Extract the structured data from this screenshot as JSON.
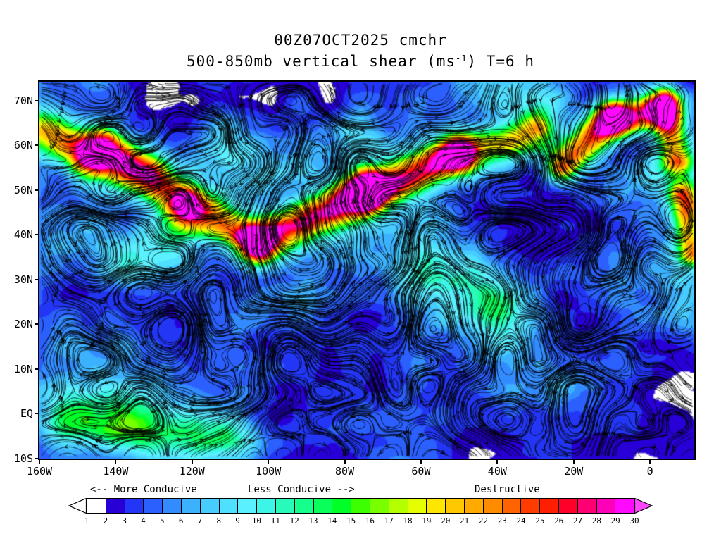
{
  "title": {
    "line1": "00Z07OCT2025 cmchr",
    "line2_pre": "500-850mb vertical shear (ms",
    "line2_sup": "-1",
    "line2_post": ") T=6 h"
  },
  "axes": {
    "lat_range": [
      -10,
      74.2
    ],
    "lon_range": [
      -160,
      11.6
    ],
    "lat_ticks": [
      {
        "label": "70N",
        "value": 70
      },
      {
        "label": "60N",
        "value": 60
      },
      {
        "label": "50N",
        "value": 50
      },
      {
        "label": "40N",
        "value": 40
      },
      {
        "label": "30N",
        "value": 30
      },
      {
        "label": "20N",
        "value": 20
      },
      {
        "label": "10N",
        "value": 10
      },
      {
        "label": "EQ",
        "value": 0
      },
      {
        "label": "10S",
        "value": -10
      }
    ],
    "lon_ticks": [
      {
        "label": "160W",
        "value": -160
      },
      {
        "label": "140W",
        "value": -140
      },
      {
        "label": "120W",
        "value": -120
      },
      {
        "label": "100W",
        "value": -100
      },
      {
        "label": "80W",
        "value": -80
      },
      {
        "label": "60W",
        "value": -60
      },
      {
        "label": "40W",
        "value": -40
      },
      {
        "label": "20W",
        "value": -20
      },
      {
        "label": "0",
        "value": 0
      }
    ]
  },
  "legend": {
    "labels": {
      "more": "<--  More Conducive",
      "less": "Less Conducive  -->",
      "destructive": "Destructive"
    },
    "ticks": [
      "1",
      "2",
      "3",
      "4",
      "5",
      "6",
      "7",
      "8",
      "9",
      "10",
      "11",
      "12",
      "13",
      "14",
      "15",
      "16",
      "17",
      "18",
      "19",
      "20",
      "21",
      "22",
      "23",
      "24",
      "25",
      "26",
      "27",
      "28",
      "29",
      "30"
    ],
    "cell_colors": [
      "#ffffff",
      "#2800d7",
      "#2336f5",
      "#2b60ff",
      "#338cff",
      "#3cb2ff",
      "#46ccff",
      "#50e0ff",
      "#5af0ff",
      "#3cf5e6",
      "#28fab9",
      "#14ff8c",
      "#0aff5a",
      "#00ff28",
      "#3cff00",
      "#78ff00",
      "#b4ff00",
      "#e6ff00",
      "#ffe600",
      "#ffc800",
      "#ffaa00",
      "#ff8c00",
      "#ff6400",
      "#ff3c00",
      "#ff1e00",
      "#ff0028",
      "#ff0073",
      "#ff00b9",
      "#ff0aff"
    ],
    "left_arrow_color": "#ffffff",
    "right_arrow_color": "#ff46ff"
  },
  "map": {
    "background_color": "#ffffff",
    "below_min_color": "#ffffff",
    "streamline_color": "#000000"
  }
}
